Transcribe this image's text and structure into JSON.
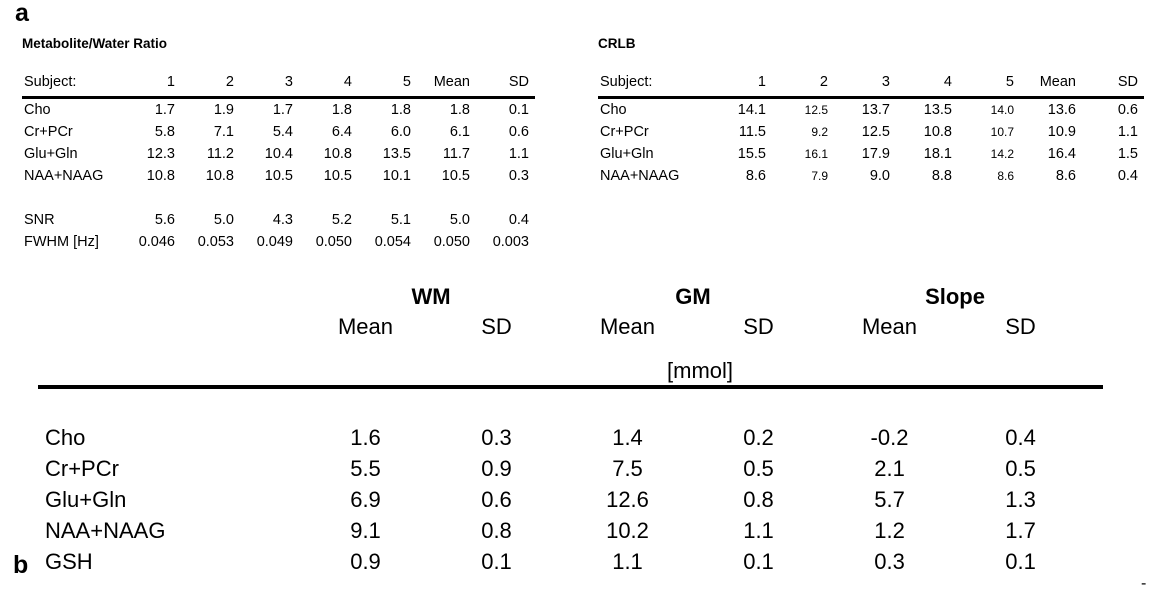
{
  "panel_a": "a",
  "panel_b": "b",
  "stray_mark": "-",
  "ratio_table": {
    "title": "Metabolite/Water Ratio",
    "header": {
      "label": "Subject:",
      "cols": [
        "1",
        "2",
        "3",
        "4",
        "5",
        "Mean",
        "SD"
      ]
    },
    "rows": [
      {
        "label": "Cho",
        "values": [
          "1.7",
          "1.9",
          "1.7",
          "1.8",
          "1.8",
          "1.8",
          "0.1"
        ]
      },
      {
        "label": "Cr+PCr",
        "values": [
          "5.8",
          "7.1",
          "5.4",
          "6.4",
          "6.0",
          "6.1",
          "0.6"
        ]
      },
      {
        "label": "Glu+Gln",
        "values": [
          "12.3",
          "11.2",
          "10.4",
          "10.8",
          "13.5",
          "11.7",
          "1.1"
        ]
      },
      {
        "label": "NAA+NAAG",
        "values": [
          "10.8",
          "10.8",
          "10.5",
          "10.5",
          "10.1",
          "10.5",
          "0.3"
        ]
      },
      {
        "label": "",
        "values": [
          "",
          "",
          "",
          "",
          "",
          "",
          ""
        ],
        "spacer": true
      },
      {
        "label": "SNR",
        "values": [
          "5.6",
          "5.0",
          "4.3",
          "5.2",
          "5.1",
          "5.0",
          "0.4"
        ]
      },
      {
        "label": "FWHM [Hz]",
        "values": [
          "0.046",
          "0.053",
          "0.049",
          "0.050",
          "0.054",
          "0.050",
          "0.003"
        ]
      }
    ]
  },
  "crlb_table": {
    "title": "CRLB",
    "header": {
      "label": "Subject:",
      "cols": [
        "1",
        "2",
        "3",
        "4",
        "5",
        "Mean",
        "SD"
      ]
    },
    "rows": [
      {
        "label": "Cho",
        "values": [
          "14.1",
          "12.5",
          "13.7",
          "13.5",
          "14.0",
          "13.6",
          "0.6"
        ]
      },
      {
        "label": "Cr+PCr",
        "values": [
          "11.5",
          "9.2",
          "12.5",
          "10.8",
          "10.7",
          "10.9",
          "1.1"
        ]
      },
      {
        "label": "Glu+Gln",
        "values": [
          "15.5",
          "16.1",
          "17.9",
          "18.1",
          "14.2",
          "16.4",
          "1.5"
        ]
      },
      {
        "label": "NAA+NAAG",
        "values": [
          "8.6",
          "7.9",
          "9.0",
          "8.8",
          "8.6",
          "8.6",
          "0.4"
        ]
      }
    ]
  },
  "concentration_table": {
    "groups": [
      "WM",
      "GM",
      "Slope"
    ],
    "subheaders": [
      "Mean",
      "SD",
      "Mean",
      "SD",
      "Mean",
      "SD"
    ],
    "unit_label": "[mmol]",
    "rows": [
      {
        "label": "Cho",
        "values": [
          "1.6",
          "0.3",
          "1.4",
          "0.2",
          "-0.2",
          "0.4"
        ]
      },
      {
        "label": "Cr+PCr",
        "values": [
          "5.5",
          "0.9",
          "7.5",
          "0.5",
          "2.1",
          "0.5"
        ]
      },
      {
        "label": "Glu+Gln",
        "values": [
          "6.9",
          "0.6",
          "12.6",
          "0.8",
          "5.7",
          "1.3"
        ]
      },
      {
        "label": "NAA+NAAG",
        "values": [
          "9.1",
          "0.8",
          "10.2",
          "1.1",
          "1.2",
          "1.7"
        ]
      },
      {
        "label": "GSH",
        "values": [
          "0.9",
          "0.1",
          "1.1",
          "0.1",
          "0.3",
          "0.1"
        ]
      }
    ]
  }
}
